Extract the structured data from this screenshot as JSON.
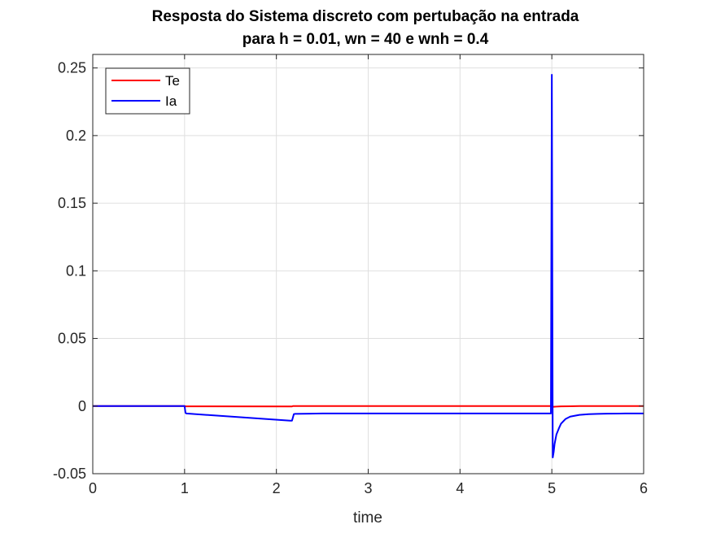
{
  "chart_data": {
    "type": "line",
    "title": [
      "Resposta do Sistema discreto com pertubação na entrada",
      "para h = 0.01, wn = 40 e wnh = 0.4"
    ],
    "xlabel": "time",
    "ylabel": "",
    "xlim": [
      0,
      6
    ],
    "ylim": [
      -0.05,
      0.26
    ],
    "xticks": [
      0,
      1,
      2,
      3,
      4,
      5,
      6
    ],
    "xtick_labels": [
      "0",
      "1",
      "2",
      "3",
      "4",
      "5",
      "6"
    ],
    "yticks": [
      -0.05,
      0,
      0.05,
      0.1,
      0.15,
      0.2,
      0.25
    ],
    "ytick_labels": [
      "-0.05",
      "0",
      "0.05",
      "0.1",
      "0.15",
      "0.2",
      "0.25"
    ],
    "grid": true,
    "legend_position": "top-left",
    "series": [
      {
        "name": "Te",
        "color": "#ff0000",
        "x": [
          0,
          1.0,
          1.01,
          2.17,
          2.18,
          4.99,
          5.0,
          5.01,
          5.05,
          5.1,
          5.2,
          5.3,
          6.0
        ],
        "y": [
          0,
          0,
          -0.0002,
          -0.0003,
          0,
          0,
          0,
          -0.0006,
          -0.0004,
          -0.0002,
          -0.0001,
          0,
          0
        ]
      },
      {
        "name": "Ia",
        "color": "#0000ff",
        "x": [
          0,
          1.0,
          1.01,
          1.02,
          2.15,
          2.17,
          2.19,
          2.2,
          2.5,
          4.99,
          5.0,
          5.01,
          5.02,
          5.03,
          5.05,
          5.08,
          5.1,
          5.15,
          5.2,
          5.3,
          5.4,
          5.5,
          5.6,
          5.8,
          6.0
        ],
        "y": [
          0,
          0,
          -0.005,
          -0.0055,
          -0.0108,
          -0.0108,
          -0.006,
          -0.0058,
          -0.0055,
          -0.0055,
          0.245,
          -0.038,
          -0.034,
          -0.028,
          -0.021,
          -0.016,
          -0.013,
          -0.0095,
          -0.0078,
          -0.0065,
          -0.006,
          -0.0058,
          -0.0056,
          -0.0055,
          -0.0055
        ]
      }
    ]
  }
}
